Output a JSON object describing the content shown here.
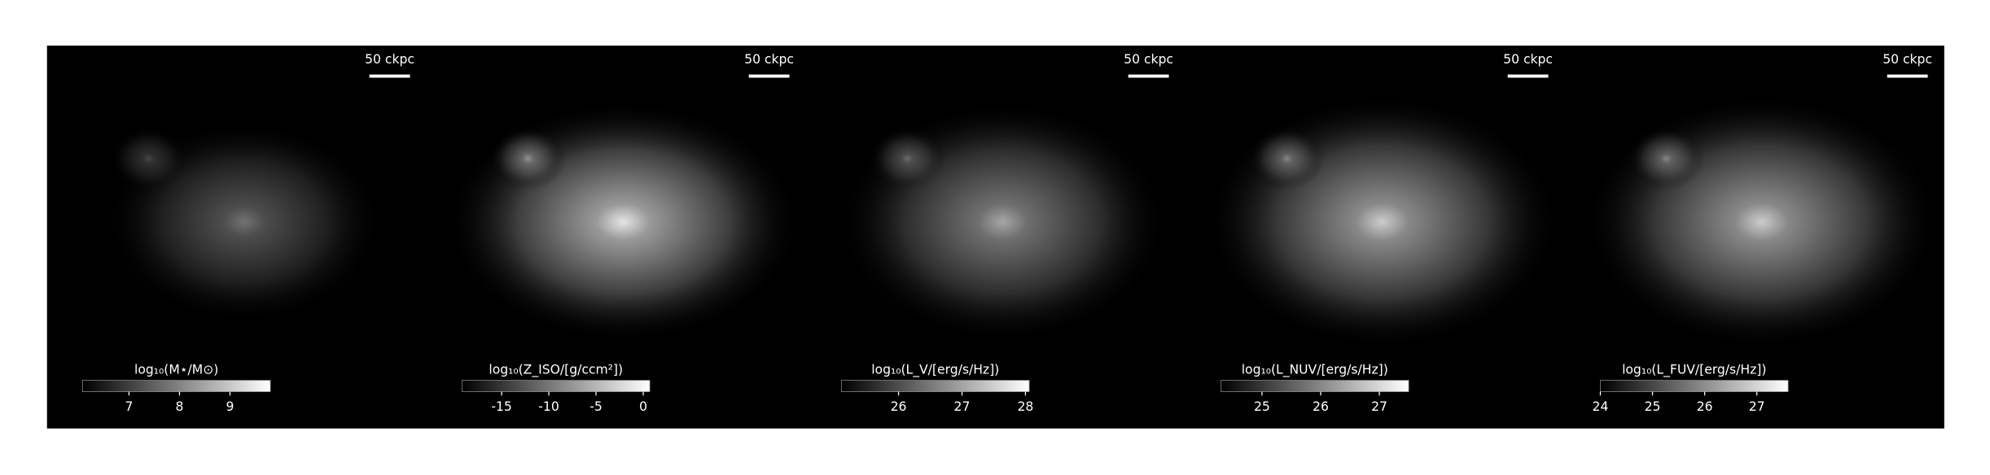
{
  "chart_data": [
    {
      "type": "image",
      "scale_bar": "50 ckpc",
      "colorbar_label": "log₁₀(M⋆/M⊙)",
      "clim": [
        6.08,
        9.8
      ],
      "cticks": [
        7,
        8,
        9
      ]
    },
    {
      "type": "image",
      "scale_bar": "50 ckpc",
      "colorbar_label": "log₁₀(Z_ISO/[g/ccm²])",
      "clim": [
        -19.2,
        0.7
      ],
      "cticks": [
        -15,
        -10,
        -5,
        0
      ]
    },
    {
      "type": "image",
      "scale_bar": "50 ckpc",
      "colorbar_label": "log₁₀(L_V/[erg/s/Hz])",
      "clim": [
        25.1,
        28.06
      ],
      "cticks": [
        26,
        27,
        28
      ]
    },
    {
      "type": "image",
      "scale_bar": "50 ckpc",
      "colorbar_label": "log₁₀(L_NUV/[erg/s/Hz])",
      "clim": [
        24.3,
        27.5
      ],
      "cticks": [
        25,
        26,
        27
      ]
    },
    {
      "type": "image",
      "scale_bar": "50 ckpc",
      "colorbar_label": "log₁₀(L_FUV/[erg/s/Hz])",
      "clim": [
        24,
        27.6
      ],
      "cticks": [
        24,
        25,
        26,
        27
      ]
    }
  ]
}
